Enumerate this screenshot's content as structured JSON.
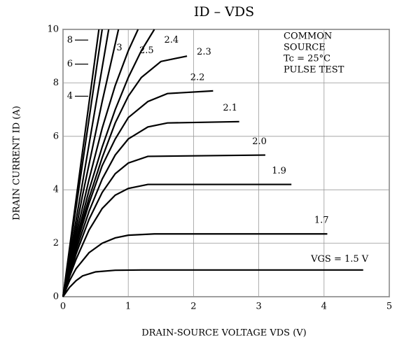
{
  "chart_data": {
    "type": "line",
    "title": "ID – VDS",
    "x_label": "DRAIN-SOURCE VOLTAGE  VDS  (V)",
    "y_label": "DRAIN CURRENT  ID  (A)",
    "annotation": [
      "COMMON",
      "SOURCE",
      "Tc = 25°C",
      "PULSE TEST"
    ],
    "xlim": [
      0,
      5
    ],
    "ylim": [
      0,
      10
    ],
    "xticks": [
      0,
      1,
      2,
      3,
      4,
      5
    ],
    "yticks": [
      0,
      2,
      4,
      6,
      8,
      10
    ],
    "grid": true,
    "color": "#000000",
    "series": [
      {
        "name": "VGS = 1.5 V",
        "x": [
          0,
          0.1,
          0.2,
          0.3,
          0.5,
          0.8,
          1.2,
          4.6
        ],
        "values": [
          0,
          0.35,
          0.6,
          0.78,
          0.93,
          0.99,
          1.0,
          1.0
        ]
      },
      {
        "name": "1.7",
        "x": [
          0,
          0.1,
          0.2,
          0.4,
          0.6,
          0.8,
          1.0,
          1.4,
          4.05
        ],
        "values": [
          0,
          0.6,
          1.05,
          1.65,
          2.0,
          2.2,
          2.3,
          2.35,
          2.35
        ]
      },
      {
        "name": "1.9",
        "x": [
          0,
          0.1,
          0.2,
          0.4,
          0.6,
          0.8,
          1.0,
          1.3,
          3.5
        ],
        "values": [
          0,
          0.75,
          1.4,
          2.5,
          3.3,
          3.8,
          4.05,
          4.2,
          4.2
        ]
      },
      {
        "name": "2.0",
        "x": [
          0,
          0.1,
          0.2,
          0.4,
          0.6,
          0.8,
          1.0,
          1.3,
          3.1
        ],
        "values": [
          0,
          0.8,
          1.6,
          2.9,
          3.9,
          4.6,
          5.0,
          5.25,
          5.3
        ]
      },
      {
        "name": "2.1",
        "x": [
          0,
          0.1,
          0.2,
          0.4,
          0.6,
          0.8,
          1.0,
          1.3,
          1.6,
          2.7
        ],
        "values": [
          0,
          0.9,
          1.75,
          3.2,
          4.4,
          5.3,
          5.9,
          6.35,
          6.5,
          6.55
        ]
      },
      {
        "name": "2.2",
        "x": [
          0,
          0.1,
          0.2,
          0.4,
          0.6,
          0.8,
          1.0,
          1.3,
          1.6,
          2.3
        ],
        "values": [
          0,
          0.95,
          1.9,
          3.5,
          4.9,
          5.9,
          6.7,
          7.3,
          7.6,
          7.7
        ]
      },
      {
        "name": "2.3",
        "x": [
          0,
          0.1,
          0.2,
          0.4,
          0.6,
          0.8,
          1.0,
          1.2,
          1.5,
          1.9
        ],
        "values": [
          0,
          1.0,
          2.0,
          3.7,
          5.2,
          6.5,
          7.5,
          8.2,
          8.8,
          9.0
        ]
      },
      {
        "name": "2.4",
        "x": [
          0,
          0.2,
          0.4,
          0.6,
          0.8,
          1.0,
          1.2,
          1.4
        ],
        "values": [
          0,
          2.1,
          4.0,
          5.6,
          7.0,
          8.2,
          9.2,
          10
        ]
      },
      {
        "name": "2.5",
        "x": [
          0,
          0.2,
          0.4,
          0.6,
          0.8,
          1.0,
          1.15
        ],
        "values": [
          0,
          2.3,
          4.4,
          6.3,
          7.9,
          9.2,
          10
        ]
      },
      {
        "name": "3",
        "x": [
          0,
          0.3,
          0.6,
          0.85
        ],
        "values": [
          0,
          3.8,
          7.3,
          10
        ]
      },
      {
        "name": "4",
        "x": [
          0,
          0.35,
          0.7
        ],
        "values": [
          0,
          5,
          10
        ]
      },
      {
        "name": "6",
        "x": [
          0,
          0.6
        ],
        "values": [
          0,
          10
        ]
      },
      {
        "name": "8",
        "x": [
          0,
          0.55
        ],
        "values": [
          0,
          10
        ]
      }
    ]
  }
}
